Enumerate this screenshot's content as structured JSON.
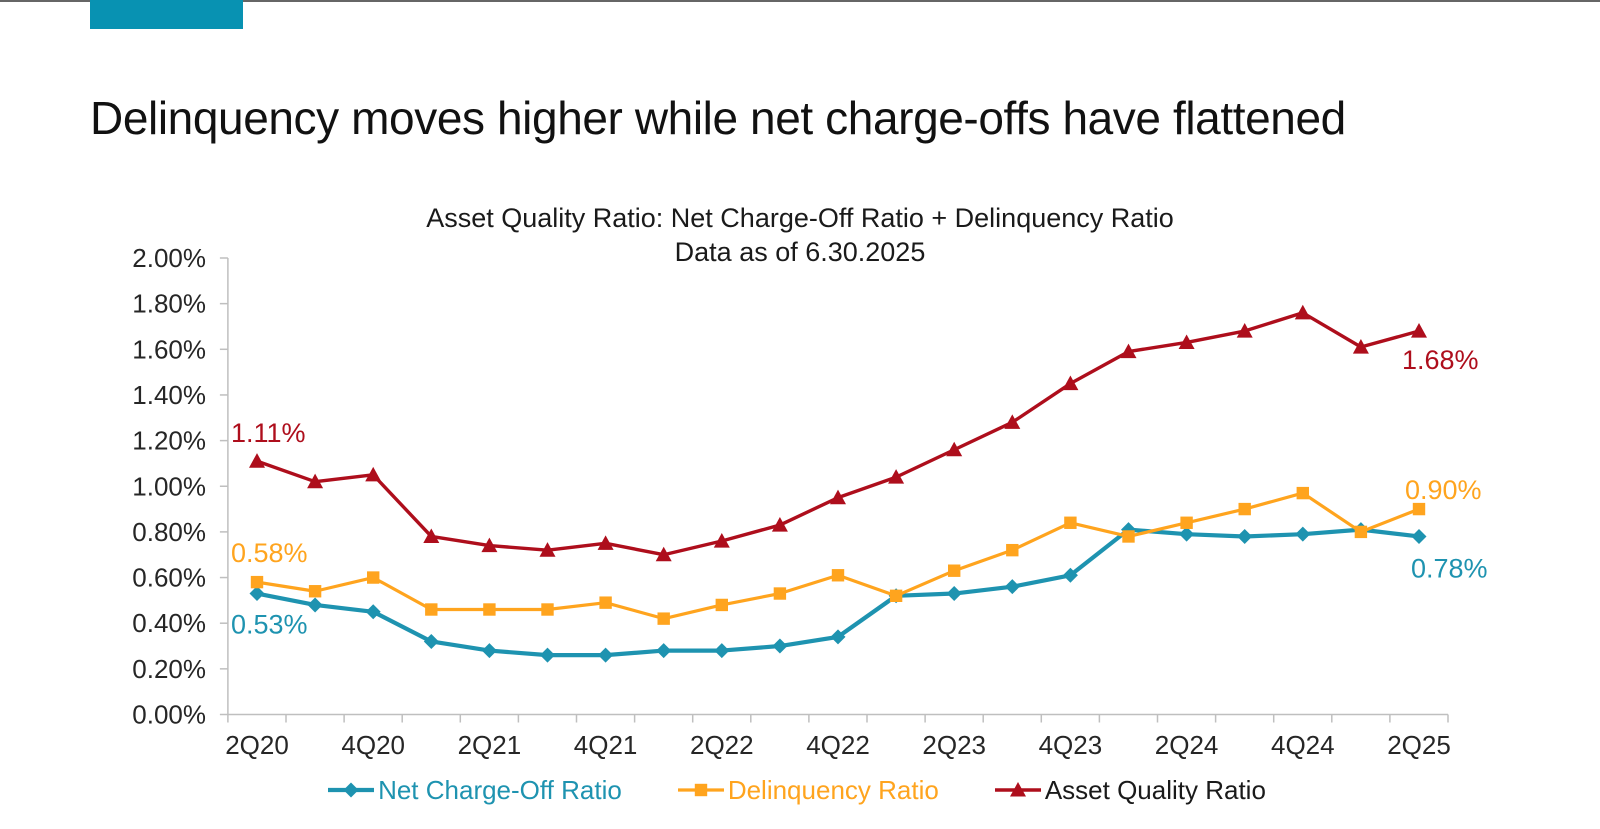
{
  "brand": {
    "accent_color": "#0892B2",
    "top_rule_color": "#666666"
  },
  "slide": {
    "title": "Delinquency moves higher while net charge-offs have flattened"
  },
  "chart_data": {
    "type": "line",
    "title": "Asset Quality Ratio: Net Charge-Off Ratio + Delinquency Ratio",
    "subtitle": "Data as of 6.30.2025",
    "categories": [
      "2Q20",
      "3Q20",
      "4Q20",
      "1Q21",
      "2Q21",
      "3Q21",
      "4Q21",
      "1Q22",
      "2Q22",
      "3Q22",
      "4Q22",
      "1Q23",
      "2Q23",
      "3Q23",
      "4Q23",
      "1Q24",
      "2Q24",
      "3Q24",
      "4Q24",
      "1Q25",
      "2Q25"
    ],
    "x_axis_labels": [
      "2Q20",
      "4Q20",
      "2Q21",
      "4Q21",
      "2Q22",
      "4Q22",
      "2Q23",
      "4Q23",
      "2Q24",
      "4Q24",
      "2Q25"
    ],
    "y_tick_labels": [
      "0.00%",
      "0.20%",
      "0.40%",
      "0.60%",
      "0.80%",
      "1.00%",
      "1.20%",
      "1.40%",
      "1.60%",
      "1.80%",
      "2.00%"
    ],
    "ylim": [
      0,
      2.0
    ],
    "y_tick_step": 0.2,
    "grid": false,
    "legend_position": "bottom",
    "series": [
      {
        "name": "Net Charge-Off Ratio",
        "color": "#1E93B0",
        "legend_text_color": "#1E93B0",
        "marker": "diamond",
        "start_label": "0.53%",
        "end_label": "0.78%",
        "values": [
          0.53,
          0.48,
          0.45,
          0.32,
          0.28,
          0.26,
          0.26,
          0.28,
          0.28,
          0.3,
          0.34,
          0.52,
          0.53,
          0.56,
          0.61,
          0.81,
          0.79,
          0.78,
          0.79,
          0.81,
          0.78
        ]
      },
      {
        "name": "Delinquency Ratio",
        "color": "#FFA41E",
        "legend_text_color": "#FFA41E",
        "marker": "square",
        "start_label": "0.58%",
        "end_label": "0.90%",
        "values": [
          0.58,
          0.54,
          0.6,
          0.46,
          0.46,
          0.46,
          0.49,
          0.42,
          0.48,
          0.53,
          0.61,
          0.52,
          0.63,
          0.72,
          0.84,
          0.78,
          0.84,
          0.9,
          0.97,
          0.8,
          0.9
        ]
      },
      {
        "name": "Asset Quality Ratio",
        "color": "#AE0E1C",
        "legend_text_color": "#1A1A1A",
        "marker": "triangle",
        "start_label": "1.11%",
        "end_label": "1.68%",
        "values": [
          1.11,
          1.02,
          1.05,
          0.78,
          0.74,
          0.72,
          0.75,
          0.7,
          0.76,
          0.83,
          0.95,
          1.04,
          1.16,
          1.28,
          1.45,
          1.59,
          1.63,
          1.68,
          1.76,
          1.61,
          1.68
        ]
      }
    ]
  }
}
